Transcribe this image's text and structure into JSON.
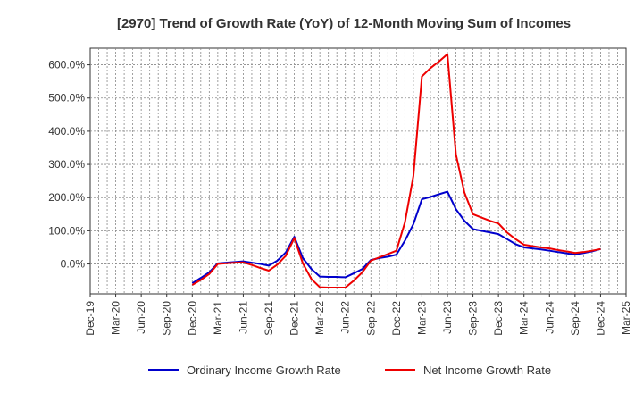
{
  "chart_data": {
    "type": "line",
    "title": "[2970]  Trend of Growth Rate (YoY) of 12-Month Moving Sum of Incomes",
    "xlabel": "",
    "ylabel": "",
    "x_ticks": [
      "Dec-19",
      "Mar-20",
      "Jun-20",
      "Sep-20",
      "Dec-20",
      "Mar-21",
      "Jun-21",
      "Sep-21",
      "Dec-21",
      "Mar-22",
      "Jun-22",
      "Sep-22",
      "Dec-22",
      "Mar-23",
      "Jun-23",
      "Sep-23",
      "Dec-23",
      "Mar-24",
      "Jun-24",
      "Sep-24",
      "Dec-24",
      "Mar-25"
    ],
    "y_ticks": [
      {
        "value": 0,
        "label": "0.0%"
      },
      {
        "value": 100,
        "label": "100.0%"
      },
      {
        "value": 200,
        "label": "200.0%"
      },
      {
        "value": 300,
        "label": "300.0%"
      },
      {
        "value": 400,
        "label": "400.0%"
      },
      {
        "value": 500,
        "label": "500.0%"
      },
      {
        "value": 600,
        "label": "600.0%"
      }
    ],
    "ylim": [
      -90,
      650
    ],
    "grid": true,
    "legend_position": "bottom",
    "x": [
      "Dec-20",
      "Jan-21",
      "Feb-21",
      "Mar-21",
      "Apr-21",
      "May-21",
      "Jun-21",
      "Jul-21",
      "Aug-21",
      "Sep-21",
      "Oct-21",
      "Nov-21",
      "Dec-21",
      "Jan-22",
      "Feb-22",
      "Mar-22",
      "Apr-22",
      "May-22",
      "Jun-22",
      "Jul-22",
      "Aug-22",
      "Sep-22",
      "Oct-22",
      "Nov-22",
      "Dec-22",
      "Jan-23",
      "Feb-23",
      "Mar-23",
      "Apr-23",
      "May-23",
      "Jun-23",
      "Jul-23",
      "Aug-23",
      "Sep-23",
      "Oct-23",
      "Nov-23",
      "Dec-23",
      "Jan-24",
      "Feb-24",
      "Mar-24",
      "Apr-24",
      "May-24",
      "Jun-24",
      "Jul-24",
      "Aug-24",
      "Sep-24",
      "Oct-24",
      "Nov-24",
      "Dec-24"
    ],
    "series": [
      {
        "name": "Ordinary Income Growth Rate",
        "color": "#0000cc",
        "values": [
          -58,
          -42,
          -25,
          2,
          4,
          6,
          8,
          4,
          0,
          -5,
          10,
          35,
          82,
          18,
          -15,
          -38,
          -39,
          -39,
          -40,
          -28,
          -15,
          12,
          18,
          22,
          28,
          70,
          120,
          195,
          202,
          210,
          218,
          165,
          130,
          105,
          100,
          95,
          90,
          75,
          60,
          50,
          47,
          44,
          40,
          36,
          32,
          28,
          33,
          38,
          45
        ]
      },
      {
        "name": "Net Income Growth Rate",
        "color": "#ee0000",
        "values": [
          -63,
          -48,
          -30,
          0,
          2,
          4,
          5,
          -3,
          -12,
          -20,
          -2,
          25,
          78,
          2,
          -45,
          -70,
          -71,
          -71,
          -71,
          -50,
          -25,
          10,
          20,
          30,
          40,
          125,
          265,
          565,
          590,
          610,
          632,
          330,
          215,
          150,
          140,
          130,
          122,
          95,
          75,
          58,
          54,
          50,
          47,
          42,
          38,
          33,
          36,
          40,
          45
        ]
      }
    ]
  }
}
